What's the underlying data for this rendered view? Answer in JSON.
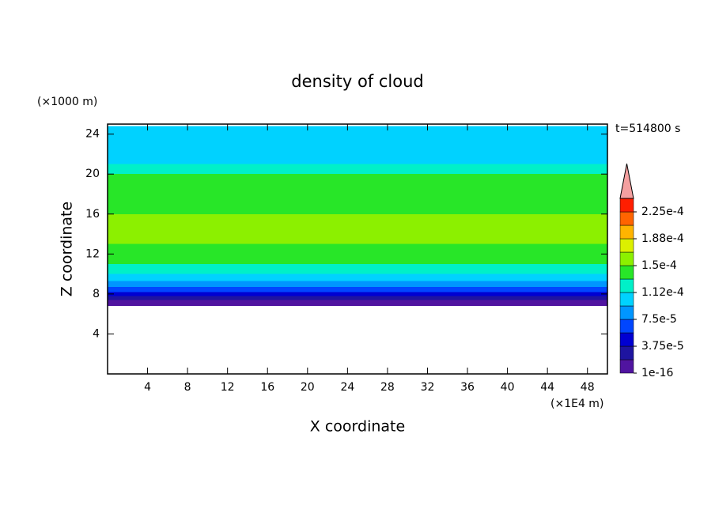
{
  "chart_data": {
    "type": "contour",
    "title": "density of cloud",
    "y_unit": "(×1000 m)",
    "x_unit": "(×1E4 m)",
    "ylabel": "Z coordinate",
    "xlabel": "X coordinate",
    "annotation": "t=514800 s",
    "xlim": [
      0,
      50
    ],
    "xticks": [
      4,
      8,
      12,
      16,
      20,
      24,
      28,
      32,
      36,
      40,
      44,
      48
    ],
    "ylim": [
      0,
      25
    ],
    "yticks": [
      4,
      8,
      12,
      16,
      20,
      24
    ],
    "z_edges": [
      6.8,
      7.4,
      7.8,
      8.2,
      8.7,
      9.3,
      10,
      11,
      12,
      13,
      16,
      17.5,
      20,
      21,
      24.8
    ],
    "values": [
      1e-05,
      2.8e-05,
      4.7e-05,
      6.5e-05,
      8.4e-05,
      0.000103,
      0.00012,
      0.000135,
      0.000142,
      0.000155,
      0.000145,
      0.000135,
      0.00012,
      0.000105
    ],
    "colorbar": {
      "levels": [
        1e-16,
        1.875e-05,
        3.75e-05,
        5.625e-05,
        7.5e-05,
        9.375e-05,
        0.0001125,
        0.00013125,
        0.00015,
        0.00016875,
        0.0001875,
        0.00020625,
        0.000225,
        0.00024375
      ],
      "colors": [
        "#5014a0",
        "#1e14a0",
        "#0000d2",
        "#0046ff",
        "#0096ff",
        "#00d2ff",
        "#00f0c8",
        "#28e628",
        "#8cf000",
        "#dcf000",
        "#ffb400",
        "#ff6400",
        "#ff1e00"
      ],
      "extend_color": "#f4a0a0",
      "ticks": [
        {
          "value": 1e-16,
          "label": "1e-16"
        },
        {
          "value": 3.75e-05,
          "label": "3.75e-5"
        },
        {
          "value": 7.5e-05,
          "label": "7.5e-5"
        },
        {
          "value": 0.0001125,
          "label": "1.12e-4"
        },
        {
          "value": 0.00015,
          "label": "1.5e-4"
        },
        {
          "value": 0.0001875,
          "label": "1.88e-4"
        },
        {
          "value": 0.000225,
          "label": "2.25e-4"
        }
      ]
    }
  }
}
